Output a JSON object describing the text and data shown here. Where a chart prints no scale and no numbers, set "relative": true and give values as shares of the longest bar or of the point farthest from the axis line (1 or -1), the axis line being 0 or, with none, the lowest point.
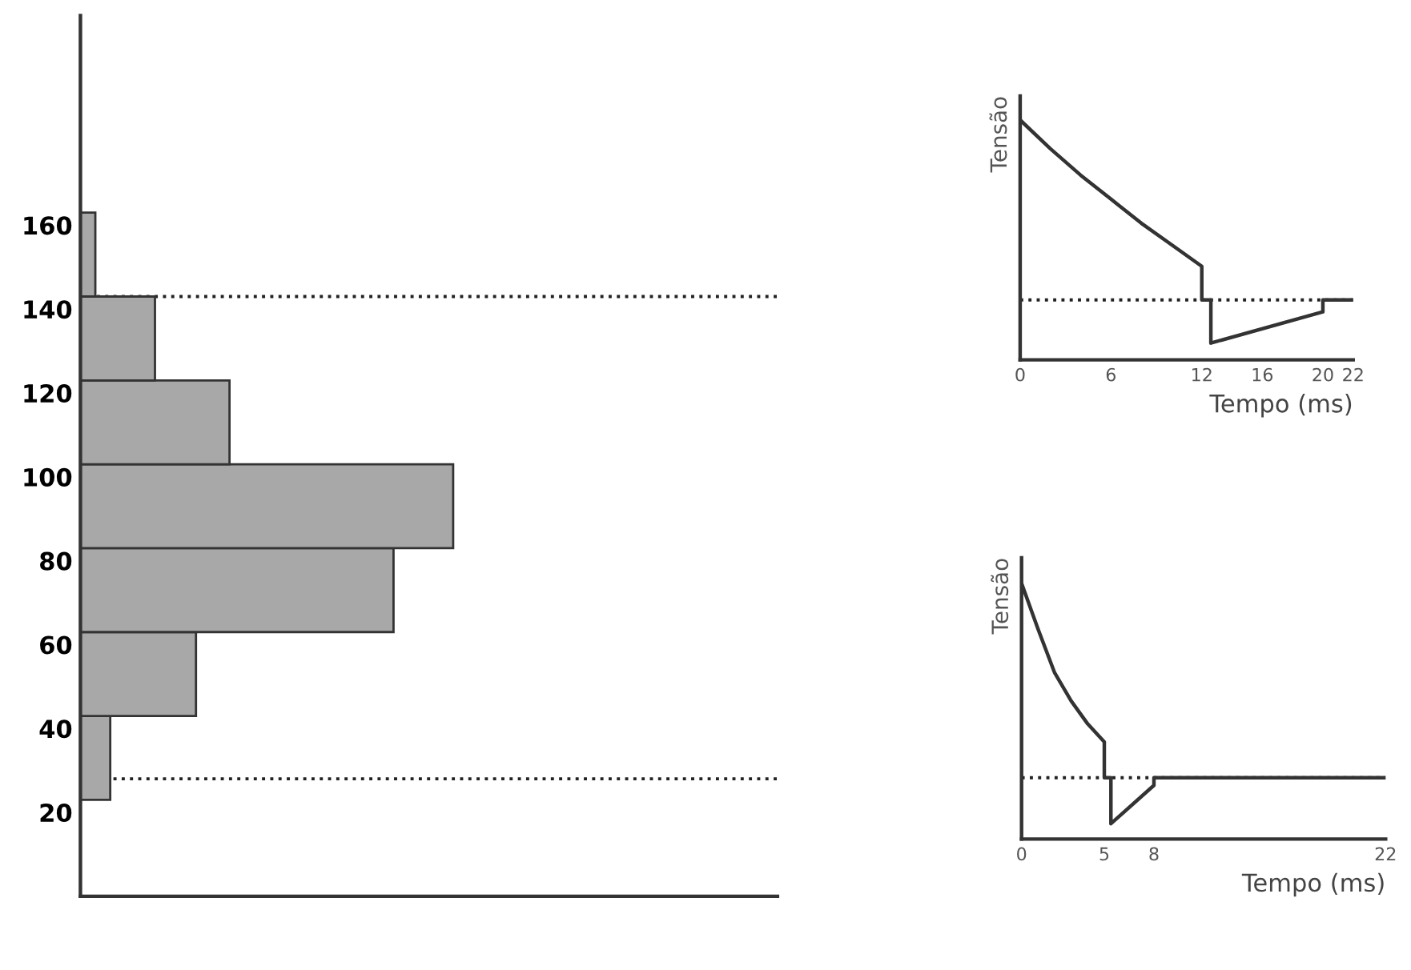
{
  "chart_data": [
    {
      "type": "bar",
      "orientation": "horizontal",
      "relative": true,
      "x": [
        33,
        53,
        73,
        93,
        113,
        133,
        153
      ],
      "values": [
        0.08,
        0.31,
        0.84,
        1.0,
        0.4,
        0.2,
        0.04
      ],
      "color": "#a8a8a8",
      "ylim": [
        0,
        210
      ],
      "yticks": [
        20,
        40,
        60,
        80,
        100,
        120,
        140,
        160
      ],
      "grid": false,
      "ref_lines": [
        {
          "axis": "y",
          "value": 143,
          "line_style": "dotted",
          "color": "#222222"
        },
        {
          "axis": "y",
          "value": 28,
          "line_style": "dotted",
          "color": "#222222"
        }
      ]
    },
    {
      "type": "line",
      "relative": true,
      "xlabel": "Tempo (ms)",
      "ylabel": "Tensão",
      "xlim": [
        0,
        22
      ],
      "xticks": [
        0,
        6,
        12,
        16,
        20,
        22
      ],
      "marker": "none",
      "line_style": "solid",
      "grid": false,
      "ref_lines": [
        {
          "axis": "y",
          "value": 0.25,
          "line_style": "dotted",
          "color": "#222222"
        }
      ],
      "series": [
        {
          "color": "#333333",
          "x": [
            0,
            2,
            4,
            6,
            8,
            10,
            12,
            12,
            12.6,
            12.6,
            20,
            20,
            22
          ],
          "values": [
            1.0,
            0.88,
            0.77,
            0.67,
            0.57,
            0.48,
            0.39,
            0.25,
            0.25,
            0.07,
            0.2,
            0.25,
            0.25
          ]
        }
      ]
    },
    {
      "type": "line",
      "relative": true,
      "xlabel": "Tempo (ms)",
      "ylabel": "Tensão",
      "xlim": [
        0,
        22
      ],
      "xticks": [
        0,
        5,
        8,
        22
      ],
      "marker": "none",
      "line_style": "solid",
      "grid": false,
      "ref_lines": [
        {
          "axis": "y",
          "value": 0.24,
          "line_style": "dotted",
          "color": "#222222"
        }
      ],
      "series": [
        {
          "color": "#333333",
          "x": [
            0,
            1,
            2,
            3,
            4,
            5,
            5,
            5.4,
            5.4,
            8,
            8,
            22
          ],
          "values": [
            1.0,
            0.82,
            0.65,
            0.54,
            0.45,
            0.38,
            0.24,
            0.24,
            0.06,
            0.21,
            0.24,
            0.24
          ]
        }
      ]
    }
  ]
}
